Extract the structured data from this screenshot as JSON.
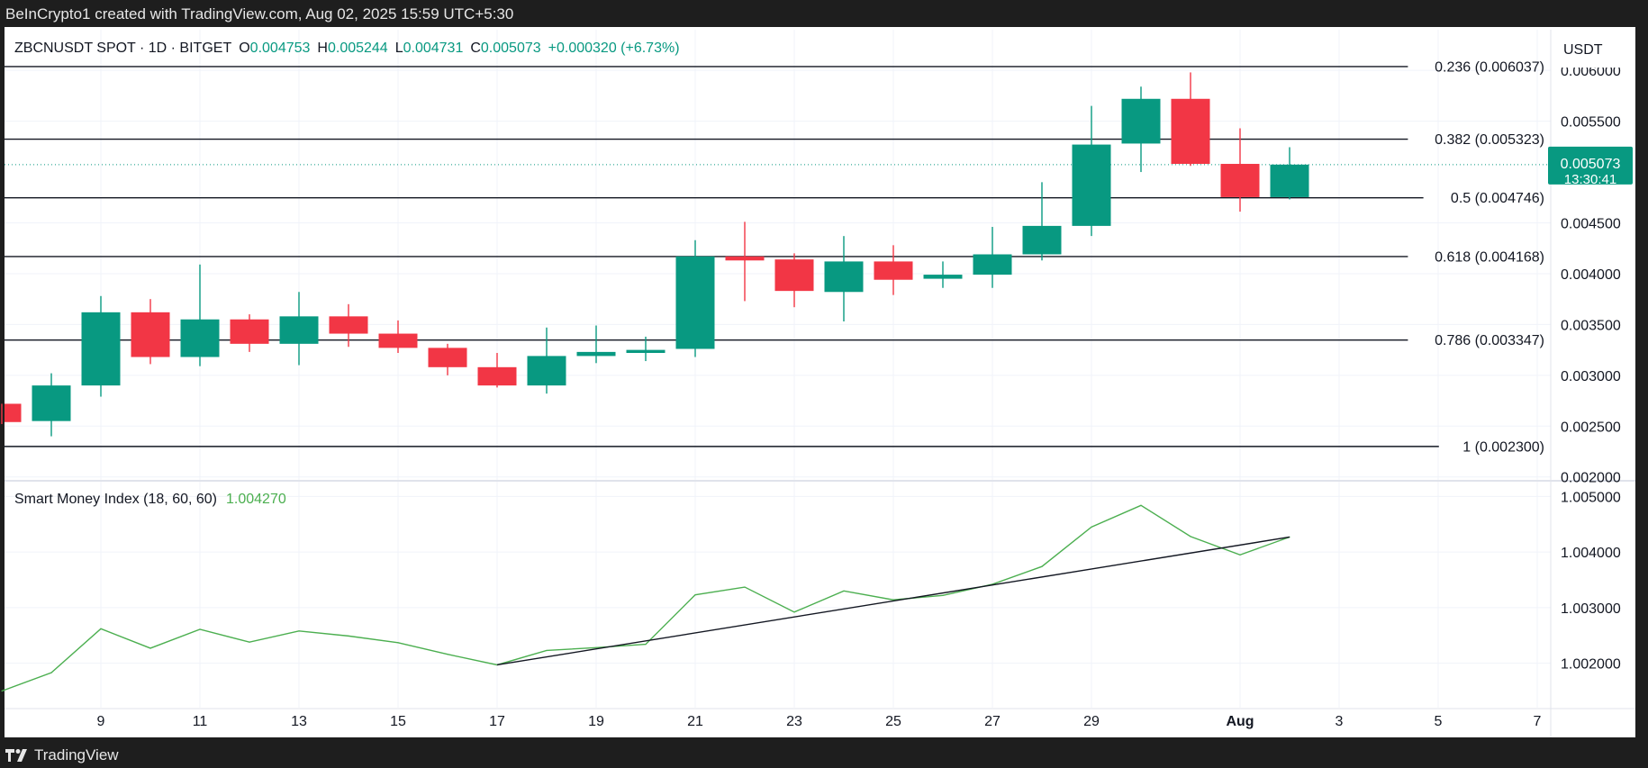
{
  "header": {
    "caption": "BeInCrypto1 created with TradingView.com, Aug 02, 2025 15:59 UTC+5:30"
  },
  "footer": {
    "brand": "TradingView",
    "logo_icon": "tradingview-logo-icon"
  },
  "legend": {
    "symbol": "ZBCNUSDT SPOT · 1D · BITGET",
    "o_label": "O",
    "o_value": "0.004753",
    "h_label": "H",
    "h_value": "0.005244",
    "l_label": "L",
    "l_value": "0.004731",
    "c_label": "C",
    "c_value": "0.005073",
    "change": "+0.000320 (+6.73%)"
  },
  "currency": "USDT",
  "last_price": {
    "value": "0.005073",
    "countdown": "13:30:41"
  },
  "colors": {
    "up": "#089981",
    "down": "#f23645",
    "smi": "#4caf50",
    "trend": "#131722"
  },
  "chart_data": [
    {
      "type": "candlestick",
      "title": "ZBCNUSDT SPOT · 1D · BITGET",
      "grid": true,
      "ylim": [
        0.00198,
        0.0064
      ],
      "y_ticks": [
        "0.006000",
        "0.005500",
        "0.004500",
        "0.004000",
        "0.003500",
        "0.003000",
        "0.002500",
        "0.002000"
      ],
      "x_ticks": [
        "9",
        "11",
        "13",
        "15",
        "17",
        "19",
        "21",
        "23",
        "25",
        "27",
        "29",
        "Aug",
        "3",
        "5",
        "7"
      ],
      "candles": [
        {
          "d": "Jul 7",
          "o": 0.00272,
          "h": 0.00272,
          "l": 0.00252,
          "c": 0.00254
        },
        {
          "d": "Jul 8",
          "o": 0.00255,
          "h": 0.00302,
          "l": 0.0024,
          "c": 0.0029
        },
        {
          "d": "Jul 9",
          "o": 0.0029,
          "h": 0.00378,
          "l": 0.00279,
          "c": 0.00362
        },
        {
          "d": "Jul 10",
          "o": 0.00362,
          "h": 0.00375,
          "l": 0.00311,
          "c": 0.00318
        },
        {
          "d": "Jul 11",
          "o": 0.00318,
          "h": 0.00409,
          "l": 0.00309,
          "c": 0.00355
        },
        {
          "d": "Jul 12",
          "o": 0.00355,
          "h": 0.0036,
          "l": 0.00323,
          "c": 0.00331
        },
        {
          "d": "Jul 13",
          "o": 0.00331,
          "h": 0.00382,
          "l": 0.0031,
          "c": 0.00358
        },
        {
          "d": "Jul 14",
          "o": 0.00358,
          "h": 0.0037,
          "l": 0.00328,
          "c": 0.00341
        },
        {
          "d": "Jul 15",
          "o": 0.00341,
          "h": 0.00354,
          "l": 0.00322,
          "c": 0.00327
        },
        {
          "d": "Jul 16",
          "o": 0.00327,
          "h": 0.00331,
          "l": 0.003,
          "c": 0.00308
        },
        {
          "d": "Jul 17",
          "o": 0.00308,
          "h": 0.00322,
          "l": 0.00288,
          "c": 0.0029
        },
        {
          "d": "Jul 18",
          "o": 0.0029,
          "h": 0.00347,
          "l": 0.00282,
          "c": 0.00319
        },
        {
          "d": "Jul 19",
          "o": 0.00319,
          "h": 0.00349,
          "l": 0.00312,
          "c": 0.00323
        },
        {
          "d": "Jul 20",
          "o": 0.00322,
          "h": 0.00338,
          "l": 0.00314,
          "c": 0.00325
        },
        {
          "d": "Jul 21",
          "o": 0.00326,
          "h": 0.00433,
          "l": 0.00318,
          "c": 0.00417
        },
        {
          "d": "Jul 22",
          "o": 0.00417,
          "h": 0.00451,
          "l": 0.00373,
          "c": 0.00413
        },
        {
          "d": "Jul 23",
          "o": 0.00414,
          "h": 0.0042,
          "l": 0.00367,
          "c": 0.00383
        },
        {
          "d": "Jul 24",
          "o": 0.00382,
          "h": 0.00437,
          "l": 0.00353,
          "c": 0.00412
        },
        {
          "d": "Jul 25",
          "o": 0.00412,
          "h": 0.00428,
          "l": 0.00379,
          "c": 0.00394
        },
        {
          "d": "Jul 26",
          "o": 0.00395,
          "h": 0.00412,
          "l": 0.00386,
          "c": 0.00399
        },
        {
          "d": "Jul 27",
          "o": 0.00399,
          "h": 0.00446,
          "l": 0.00386,
          "c": 0.00419
        },
        {
          "d": "Jul 28",
          "o": 0.00419,
          "h": 0.0049,
          "l": 0.00413,
          "c": 0.00447
        },
        {
          "d": "Jul 29",
          "o": 0.00447,
          "h": 0.00565,
          "l": 0.00437,
          "c": 0.00527
        },
        {
          "d": "Jul 30",
          "o": 0.00528,
          "h": 0.00584,
          "l": 0.005,
          "c": 0.00572
        },
        {
          "d": "Jul 31",
          "o": 0.00572,
          "h": 0.00598,
          "l": 0.00506,
          "c": 0.00508
        },
        {
          "d": "Aug 1",
          "o": 0.00508,
          "h": 0.00543,
          "l": 0.00461,
          "c": 0.004753
        },
        {
          "d": "Aug 2",
          "o": 0.004753,
          "h": 0.005244,
          "l": 0.004731,
          "c": 0.005073
        }
      ],
      "fib_levels": [
        {
          "label": "0.236 (0.006037)",
          "value": 0.006037
        },
        {
          "label": "0.382 (0.005323)",
          "value": 0.005323
        },
        {
          "label": "0.5 (0.004746)",
          "value": 0.004746
        },
        {
          "label": "0.618 (0.004168)",
          "value": 0.004168
        },
        {
          "label": "0.786 (0.003347)",
          "value": 0.003347
        },
        {
          "label": "1 (0.002300)",
          "value": 0.0023
        }
      ],
      "last_price_line": 0.005073
    },
    {
      "type": "line",
      "title": "Smart Money Index (18, 60, 60)",
      "last_value": "1.004270",
      "grid": true,
      "ylim": [
        1.0012,
        1.00525
      ],
      "y_ticks": [
        "1.005000",
        "1.004000",
        "1.003000",
        "1.002000"
      ],
      "x": [
        "Jul 7",
        "Jul 8",
        "Jul 9",
        "Jul 10",
        "Jul 11",
        "Jul 12",
        "Jul 13",
        "Jul 14",
        "Jul 15",
        "Jul 16",
        "Jul 17",
        "Jul 18",
        "Jul 19",
        "Jul 20",
        "Jul 21",
        "Jul 22",
        "Jul 23",
        "Jul 24",
        "Jul 25",
        "Jul 26",
        "Jul 27",
        "Jul 28",
        "Jul 29",
        "Jul 30",
        "Jul 31",
        "Aug 1",
        "Aug 2"
      ],
      "values": [
        1.0015,
        1.00183,
        1.00262,
        1.00227,
        1.00261,
        1.00238,
        1.00258,
        1.00249,
        1.00237,
        1.00216,
        1.00197,
        1.00223,
        1.00228,
        1.00234,
        1.00323,
        1.00337,
        1.00292,
        1.0033,
        1.00314,
        1.00322,
        1.00342,
        1.00374,
        1.00445,
        1.00484,
        1.00428,
        1.00395,
        1.00427
      ],
      "trendline": [
        {
          "x": "Jul 17",
          "y": 1.00197
        },
        {
          "x": "Aug 2",
          "y": 1.00427
        }
      ]
    }
  ]
}
